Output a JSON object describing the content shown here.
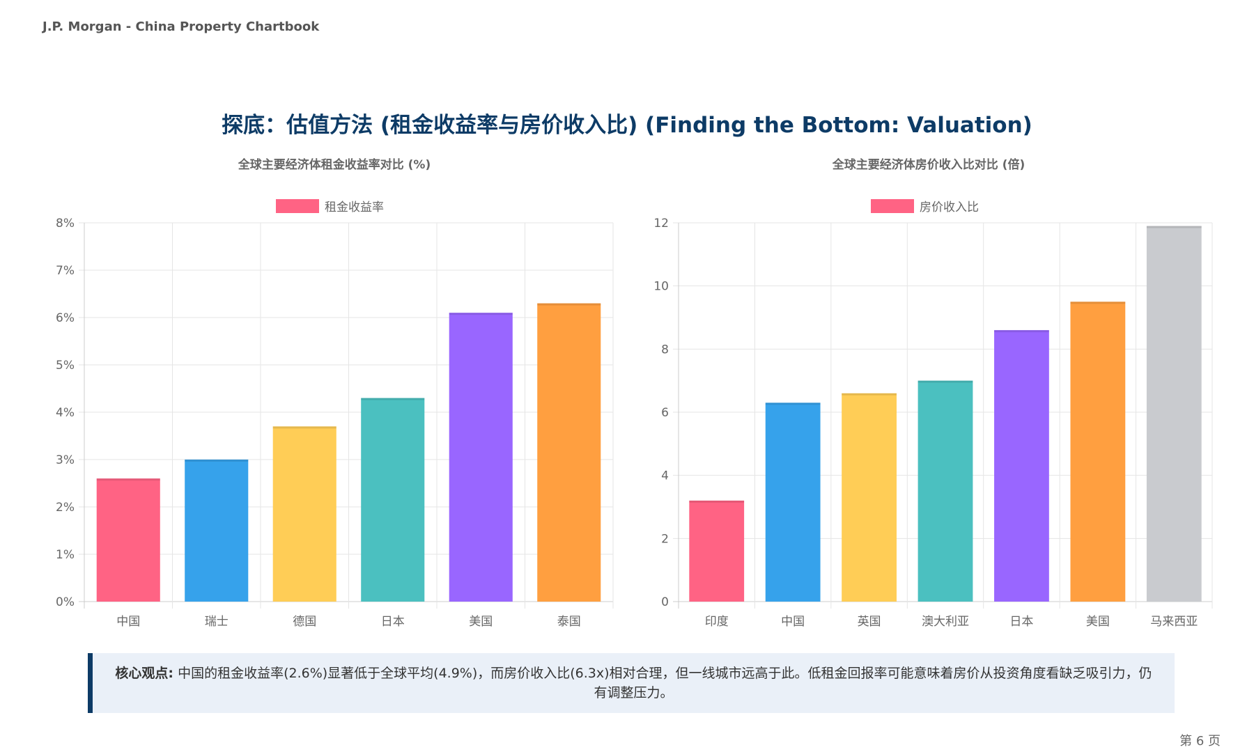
{
  "header": {
    "brand": "J.P. Morgan - China Property Chartbook"
  },
  "page_title": "探底：估值方法 (租金收益率与房价收入比) (Finding the Bottom: Valuation)",
  "callout": {
    "label": "核心观点:",
    "text": " 中国的租金收益率(2.6%)显著低于全球平均(4.9%)，而房价收入比(6.3x)相对合理，但一线城市远高于此。低租金回报率可能意味着房价从投资角度看缺乏吸引力，仍有调整压力。"
  },
  "footer": {
    "page_number": "第 6 页"
  },
  "chart_data": [
    {
      "type": "bar",
      "title": "全球主要经济体租金收益率对比 (%)",
      "series_name": "租金收益率",
      "categories": [
        "中国",
        "瑞士",
        "德国",
        "日本",
        "美国",
        "泰国"
      ],
      "values": [
        2.6,
        3.0,
        3.7,
        4.3,
        6.1,
        6.3
      ],
      "colors": [
        "#ff6384",
        "#36a2eb",
        "#ffcd56",
        "#4bc0c0",
        "#9966ff",
        "#ff9f40"
      ],
      "legend_color": "#ff6384",
      "ylim": [
        0,
        8
      ],
      "yticks": [
        "0%",
        "1%",
        "2%",
        "3%",
        "4%",
        "5%",
        "6%",
        "7%",
        "8%"
      ],
      "grid": true,
      "legend_position": "top"
    },
    {
      "type": "bar",
      "title": "全球主要经济体房价收入比对比 (倍)",
      "series_name": "房价收入比",
      "categories": [
        "印度",
        "中国",
        "英国",
        "澳大利亚",
        "日本",
        "美国",
        "马来西亚"
      ],
      "values": [
        3.2,
        6.3,
        6.6,
        7.0,
        8.6,
        9.5,
        11.9
      ],
      "colors": [
        "#ff6384",
        "#36a2eb",
        "#ffcd56",
        "#4bc0c0",
        "#9966ff",
        "#ff9f40",
        "#c9cbcf"
      ],
      "legend_color": "#ff6384",
      "ylim": [
        0,
        12
      ],
      "yticks": [
        "0",
        "2",
        "4",
        "6",
        "8",
        "10",
        "12"
      ],
      "grid": true,
      "legend_position": "top"
    }
  ]
}
